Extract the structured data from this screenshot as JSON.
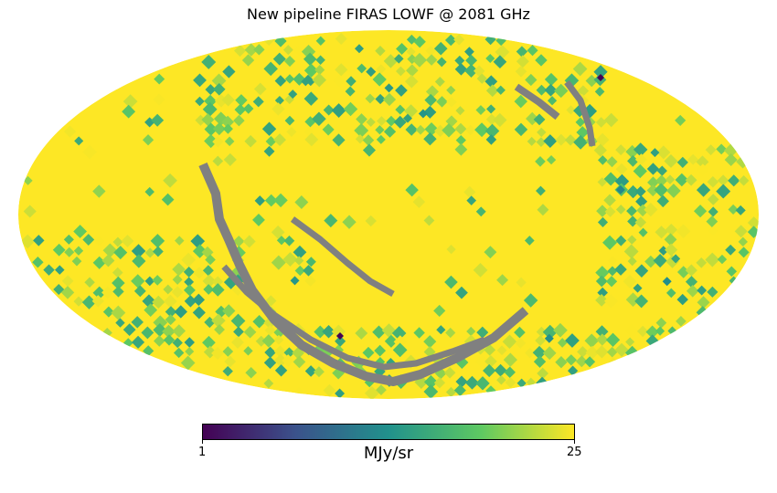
{
  "title": "New pipeline FIRAS LOWF @ 2081 GHz",
  "projection": "mollweide",
  "colormap": "viridis",
  "colors": {
    "background": "#ffffff",
    "masked": "#808080",
    "viridis_stops": [
      "#440154",
      "#3b528b",
      "#21918c",
      "#5ec962",
      "#fde725"
    ]
  },
  "colorbar": {
    "min_label": "1",
    "max_label": "25",
    "unit": "MJy/sr",
    "min": 1,
    "max": 25
  },
  "features": {
    "dominant_value": 25,
    "masked_band": "arc of unobserved pixels shown in grey sweeping across the lower-left and upper-right of the map"
  }
}
